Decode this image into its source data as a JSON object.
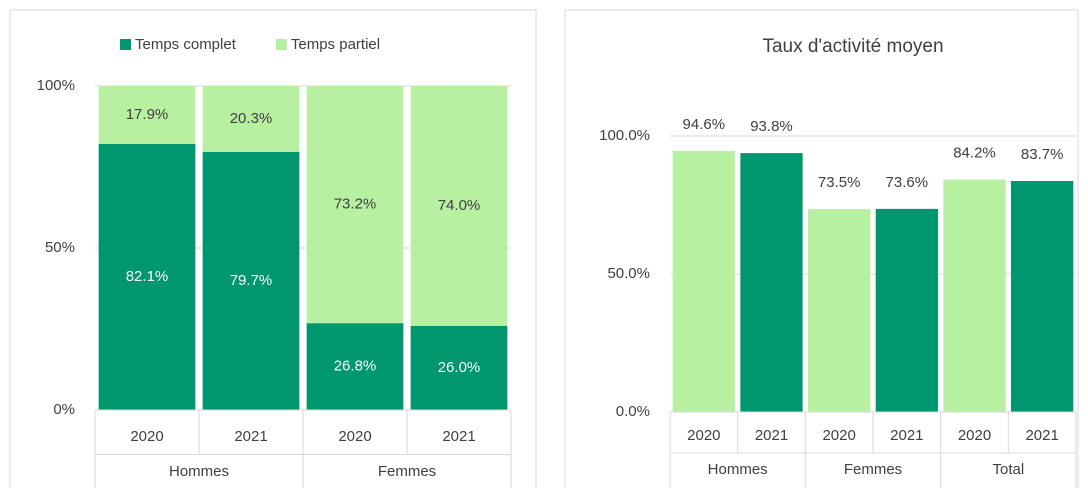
{
  "chart_data": [
    {
      "type": "stacked-bar",
      "categories": [
        "2020",
        "2021",
        "2020",
        "2021"
      ],
      "groups": [
        "Hommes",
        "Femmes"
      ],
      "series": [
        {
          "name": "Temps complet",
          "color": "#00966e",
          "values": [
            82.1,
            79.7,
            26.8,
            26.0
          ],
          "value_labels": [
            "82.1%",
            "79.7%",
            "26.8%",
            "26.0%"
          ]
        },
        {
          "name": "Temps partiel",
          "color": "#b8f0a2",
          "values": [
            17.9,
            20.3,
            73.2,
            74.0
          ],
          "value_labels": [
            "17.9%",
            "20.3%",
            "73.2%",
            "74.0%"
          ]
        }
      ],
      "ylim": [
        0,
        100
      ],
      "yticks": [
        {
          "value": 0,
          "label": "0%"
        },
        {
          "value": 50,
          "label": "50%"
        },
        {
          "value": 100,
          "label": "100%"
        }
      ],
      "grid": true,
      "legend": "top"
    },
    {
      "type": "bar",
      "title": "Taux d'activité moyen",
      "categories": [
        "2020",
        "2021",
        "2020",
        "2021",
        "2020",
        "2021"
      ],
      "groups": [
        "Hommes",
        "Femmes",
        "Total"
      ],
      "values": [
        94.6,
        93.8,
        73.5,
        73.6,
        84.2,
        83.7
      ],
      "value_labels": [
        "94.6%",
        "93.8%",
        "73.5%",
        "73.6%",
        "84.2%",
        "83.7%"
      ],
      "colors": [
        "#b8f0a2",
        "#00966e",
        "#b8f0a2",
        "#00966e",
        "#b8f0a2",
        "#00966e"
      ],
      "ylim": [
        0,
        100
      ],
      "yticks": [
        {
          "value": 0,
          "label": "0.0%"
        },
        {
          "value": 50,
          "label": "50.0%"
        },
        {
          "value": 100,
          "label": "100.0%"
        }
      ],
      "grid": true
    }
  ]
}
